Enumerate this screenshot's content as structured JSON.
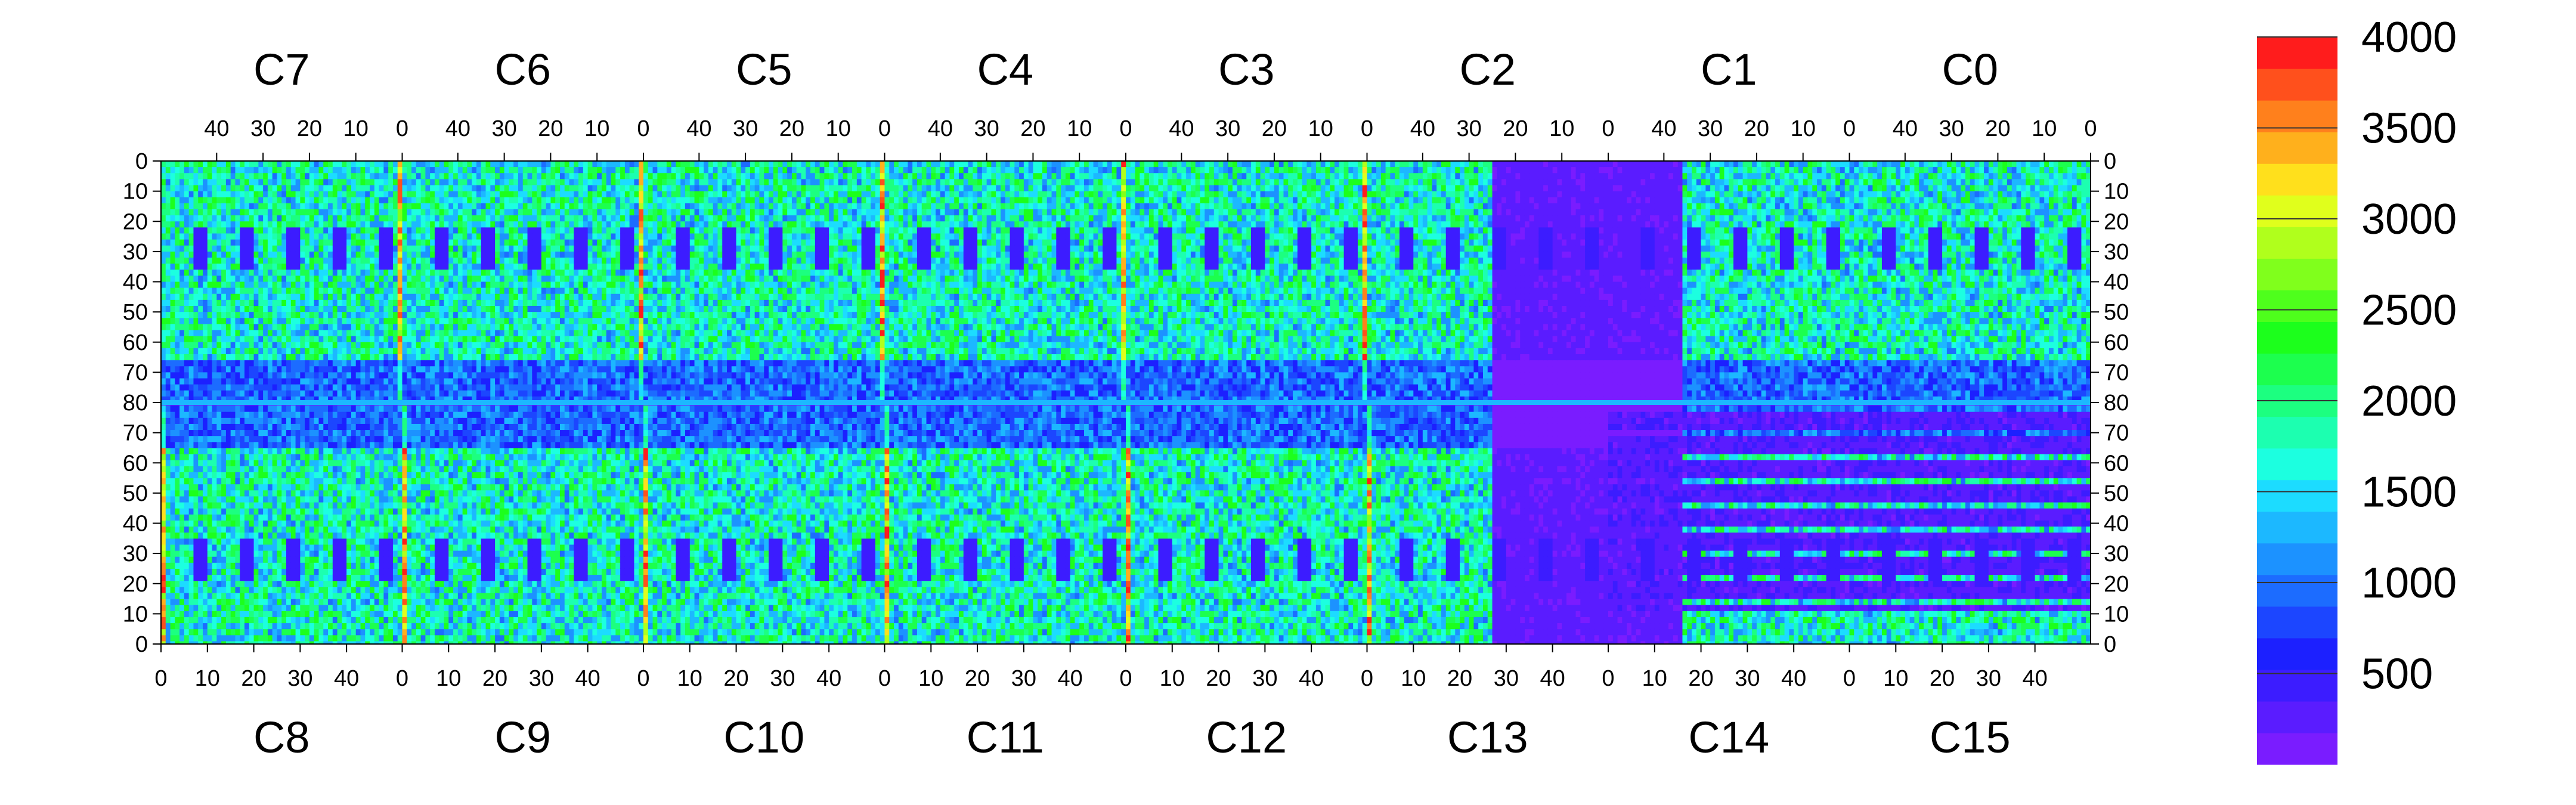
{
  "chart_data": {
    "type": "heatmap",
    "title": "",
    "chip_labels_top": [
      "C7",
      "C6",
      "C5",
      "C4",
      "C3",
      "C2",
      "C1",
      "C0"
    ],
    "chip_labels_bottom": [
      "C8",
      "C9",
      "C10",
      "C11",
      "C12",
      "C13",
      "C14",
      "C15"
    ],
    "top_axis_ticks": [
      "40",
      "30",
      "20",
      "10",
      "0"
    ],
    "bottom_axis_ticks": [
      "0",
      "10",
      "20",
      "30",
      "40"
    ],
    "left_axis_ticks": [
      "0",
      "10",
      "20",
      "30",
      "40",
      "50",
      "60",
      "70",
      "80",
      "70",
      "60",
      "50",
      "40",
      "30",
      "20",
      "10",
      "0"
    ],
    "right_axis_ticks": [
      "0",
      "10",
      "20",
      "30",
      "40",
      "50",
      "60",
      "70",
      "80",
      "70",
      "60",
      "50",
      "40",
      "30",
      "20",
      "10",
      "0"
    ],
    "columns_per_chip": 52,
    "rows_per_half": 80,
    "colorbar": {
      "min": 0,
      "max": 4000,
      "tick_labels": [
        "4000",
        "3500",
        "3000",
        "2500",
        "2000",
        "1500",
        "1000",
        "500"
      ],
      "tick_values": [
        4000,
        3500,
        3000,
        2500,
        2000,
        1500,
        1000,
        500
      ],
      "colors": [
        "#7a1cff",
        "#5a1cff",
        "#3c1cff",
        "#1c20ff",
        "#1c46ff",
        "#1c6cff",
        "#1c92ff",
        "#1cb8ff",
        "#1cdcff",
        "#1cffe0",
        "#1cffb0",
        "#1cff80",
        "#1cff4e",
        "#1cff1c",
        "#4eff1c",
        "#80ff1c",
        "#b0ff1c",
        "#e0ff1c",
        "#ffe01c",
        "#ffb01c",
        "#ff801c",
        "#ff501c",
        "#ff1c1c"
      ]
    },
    "typical_value": 1700,
    "hot_column_value": 3900,
    "dead_region_value": 150
  }
}
